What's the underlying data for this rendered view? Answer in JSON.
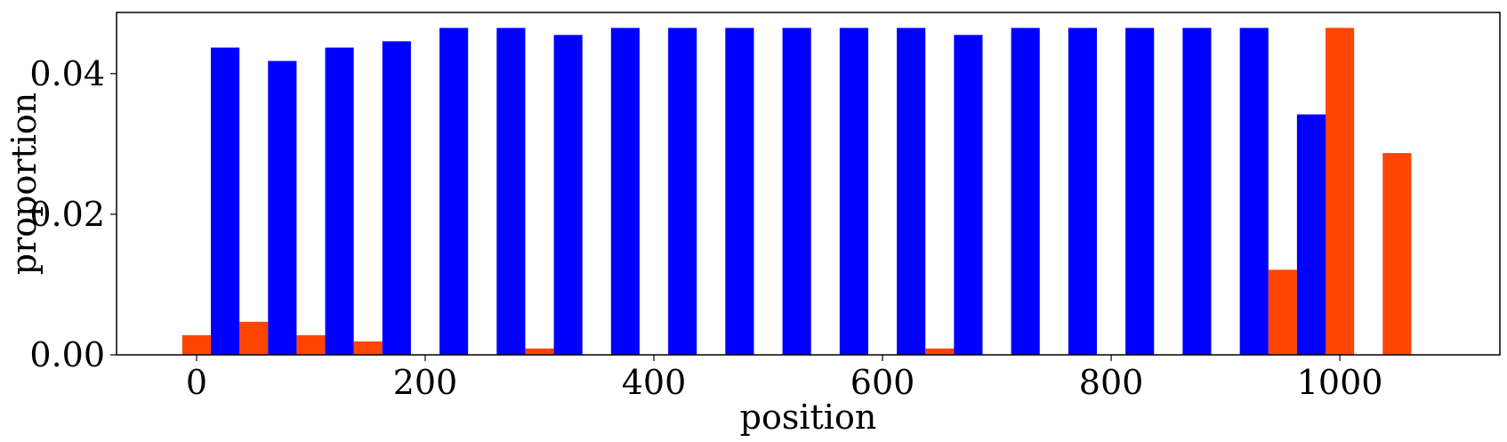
{
  "chart_data": {
    "type": "bar",
    "xlabel": "position",
    "ylabel": "proportion",
    "xlim": [
      -70,
      1140
    ],
    "ylim": [
      0,
      0.0487
    ],
    "x_ticks": [
      0,
      200,
      400,
      600,
      800,
      1000
    ],
    "x_tick_labels": [
      "0",
      "200",
      "400",
      "600",
      "800",
      "1000"
    ],
    "y_ticks": [
      0.0,
      0.02,
      0.04
    ],
    "y_tick_labels": [
      "0.00",
      "0.02",
      "0.04"
    ],
    "bin_width": 50,
    "colors": {
      "blue": "#0000ff",
      "orange": "#ff4500"
    },
    "series": [
      {
        "color": "#ff4500",
        "offset": 0,
        "x": [
          0,
          50,
          100,
          150,
          200,
          250,
          300,
          350,
          400,
          450,
          500,
          550,
          600,
          650,
          700,
          750,
          800,
          850,
          900,
          950,
          1000,
          1050
        ],
        "values": [
          0.0028,
          0.0047,
          0.0028,
          0.0019,
          0,
          0,
          0.0009,
          0,
          0,
          0,
          0,
          0,
          0,
          0.0009,
          0,
          0,
          0,
          0,
          0,
          0.0121,
          0.0465,
          0.0287
        ]
      },
      {
        "color": "#0000ff",
        "offset": 25,
        "x": [
          0,
          50,
          100,
          150,
          200,
          250,
          300,
          350,
          400,
          450,
          500,
          550,
          600,
          650,
          700,
          750,
          800,
          850,
          900,
          950
        ],
        "values": [
          0.0437,
          0.0418,
          0.0437,
          0.0446,
          0.0465,
          0.0465,
          0.0455,
          0.0465,
          0.0465,
          0.0465,
          0.0465,
          0.0465,
          0.0465,
          0.0455,
          0.0465,
          0.0465,
          0.0465,
          0.0465,
          0.0465,
          0.0342
        ]
      }
    ]
  }
}
